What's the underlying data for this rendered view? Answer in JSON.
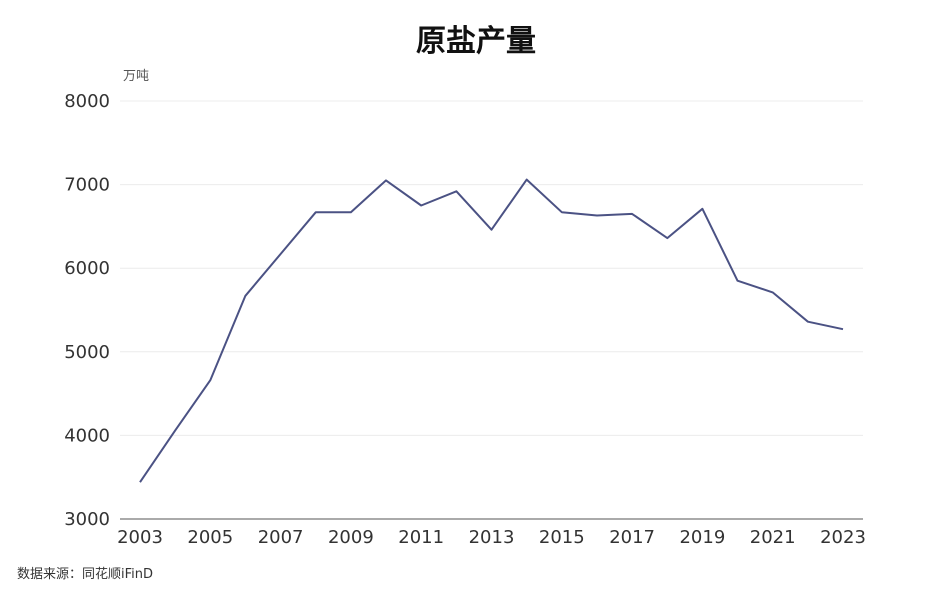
{
  "chart_data": {
    "type": "line",
    "title": "原盐产量",
    "unit": "万吨",
    "source": "数据来源：同花顺iFinD",
    "ylim": [
      3000,
      8000
    ],
    "y_ticks": [
      3000,
      4000,
      5000,
      6000,
      7000,
      8000
    ],
    "x_ticks": [
      2003,
      2005,
      2007,
      2009,
      2011,
      2013,
      2015,
      2017,
      2019,
      2021,
      2023
    ],
    "x": [
      2003,
      2004,
      2005,
      2006,
      2007,
      2008,
      2009,
      2010,
      2011,
      2012,
      2013,
      2014,
      2015,
      2016,
      2017,
      2018,
      2019,
      2020,
      2021,
      2022,
      2023
    ],
    "series": [
      {
        "values": [
          3440,
          4060,
          4660,
          5670,
          6170,
          6670,
          6670,
          7050,
          6750,
          6920,
          6460,
          7060,
          6670,
          6630,
          6650,
          6360,
          6710,
          5850,
          5710,
          5360,
          5270
        ],
        "color": "#4b5284"
      }
    ],
    "grid": true,
    "legend": "none"
  }
}
